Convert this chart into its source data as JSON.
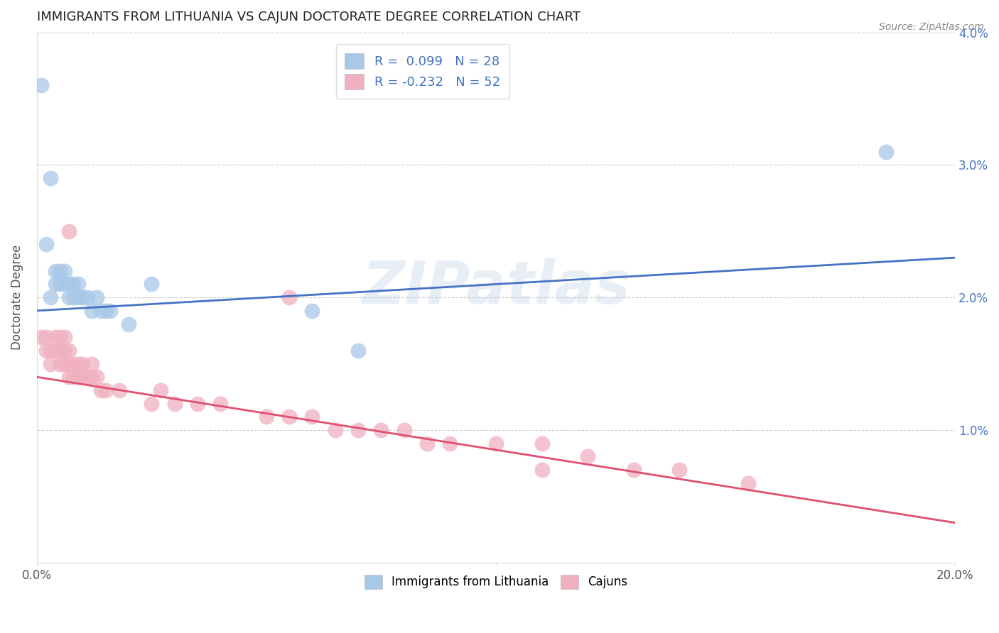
{
  "title": "IMMIGRANTS FROM LITHUANIA VS CAJUN DOCTORATE DEGREE CORRELATION CHART",
  "source": "Source: ZipAtlas.com",
  "xlabel": "",
  "ylabel": "Doctorate Degree",
  "xlim": [
    0.0,
    0.2
  ],
  "ylim": [
    0.0,
    0.04
  ],
  "xticks": [
    0.0,
    0.05,
    0.1,
    0.15,
    0.2
  ],
  "xtick_labels": [
    "0.0%",
    "",
    "",
    "",
    "20.0%"
  ],
  "yticks": [
    0.0,
    0.01,
    0.02,
    0.03,
    0.04
  ],
  "ytick_labels_left": [
    "",
    "",
    "",
    "",
    ""
  ],
  "ytick_labels_right": [
    "",
    "1.0%",
    "2.0%",
    "3.0%",
    "4.0%"
  ],
  "blue_color": "#a8c8e8",
  "pink_color": "#f0b0c0",
  "line_blue": "#4472c4",
  "line_pink": "#e05070",
  "watermark": "ZIPatlas",
  "blue_scatter": [
    [
      0.001,
      0.036
    ],
    [
      0.003,
      0.029
    ],
    [
      0.002,
      0.024
    ],
    [
      0.004,
      0.022
    ],
    [
      0.005,
      0.022
    ],
    [
      0.004,
      0.021
    ],
    [
      0.005,
      0.021
    ],
    [
      0.006,
      0.022
    ],
    [
      0.006,
      0.021
    ],
    [
      0.007,
      0.021
    ],
    [
      0.003,
      0.02
    ],
    [
      0.007,
      0.02
    ],
    [
      0.008,
      0.021
    ],
    [
      0.008,
      0.02
    ],
    [
      0.009,
      0.021
    ],
    [
      0.009,
      0.02
    ],
    [
      0.01,
      0.02
    ],
    [
      0.011,
      0.02
    ],
    [
      0.012,
      0.019
    ],
    [
      0.013,
      0.02
    ],
    [
      0.014,
      0.019
    ],
    [
      0.015,
      0.019
    ],
    [
      0.016,
      0.019
    ],
    [
      0.02,
      0.018
    ],
    [
      0.025,
      0.021
    ],
    [
      0.06,
      0.019
    ],
    [
      0.07,
      0.016
    ],
    [
      0.185,
      0.031
    ]
  ],
  "pink_scatter": [
    [
      0.001,
      0.017
    ],
    [
      0.002,
      0.017
    ],
    [
      0.002,
      0.016
    ],
    [
      0.003,
      0.016
    ],
    [
      0.003,
      0.015
    ],
    [
      0.004,
      0.017
    ],
    [
      0.004,
      0.016
    ],
    [
      0.005,
      0.017
    ],
    [
      0.005,
      0.016
    ],
    [
      0.005,
      0.015
    ],
    [
      0.006,
      0.017
    ],
    [
      0.006,
      0.016
    ],
    [
      0.006,
      0.015
    ],
    [
      0.007,
      0.016
    ],
    [
      0.007,
      0.015
    ],
    [
      0.007,
      0.014
    ],
    [
      0.008,
      0.015
    ],
    [
      0.008,
      0.014
    ],
    [
      0.009,
      0.015
    ],
    [
      0.009,
      0.014
    ],
    [
      0.01,
      0.015
    ],
    [
      0.01,
      0.014
    ],
    [
      0.011,
      0.014
    ],
    [
      0.012,
      0.015
    ],
    [
      0.012,
      0.014
    ],
    [
      0.013,
      0.014
    ],
    [
      0.014,
      0.013
    ],
    [
      0.015,
      0.013
    ],
    [
      0.018,
      0.013
    ],
    [
      0.025,
      0.012
    ],
    [
      0.027,
      0.013
    ],
    [
      0.03,
      0.012
    ],
    [
      0.035,
      0.012
    ],
    [
      0.04,
      0.012
    ],
    [
      0.05,
      0.011
    ],
    [
      0.055,
      0.011
    ],
    [
      0.06,
      0.011
    ],
    [
      0.065,
      0.01
    ],
    [
      0.07,
      0.01
    ],
    [
      0.075,
      0.01
    ],
    [
      0.08,
      0.01
    ],
    [
      0.085,
      0.009
    ],
    [
      0.09,
      0.009
    ],
    [
      0.1,
      0.009
    ],
    [
      0.11,
      0.009
    ],
    [
      0.12,
      0.008
    ],
    [
      0.13,
      0.007
    ],
    [
      0.14,
      0.007
    ],
    [
      0.007,
      0.025
    ],
    [
      0.055,
      0.02
    ],
    [
      0.11,
      0.007
    ],
    [
      0.155,
      0.006
    ]
  ],
  "blue_line_x": [
    0.0,
    0.2
  ],
  "blue_line_y": [
    0.019,
    0.023
  ],
  "pink_line_x": [
    0.0,
    0.2
  ],
  "pink_line_y": [
    0.014,
    0.003
  ]
}
